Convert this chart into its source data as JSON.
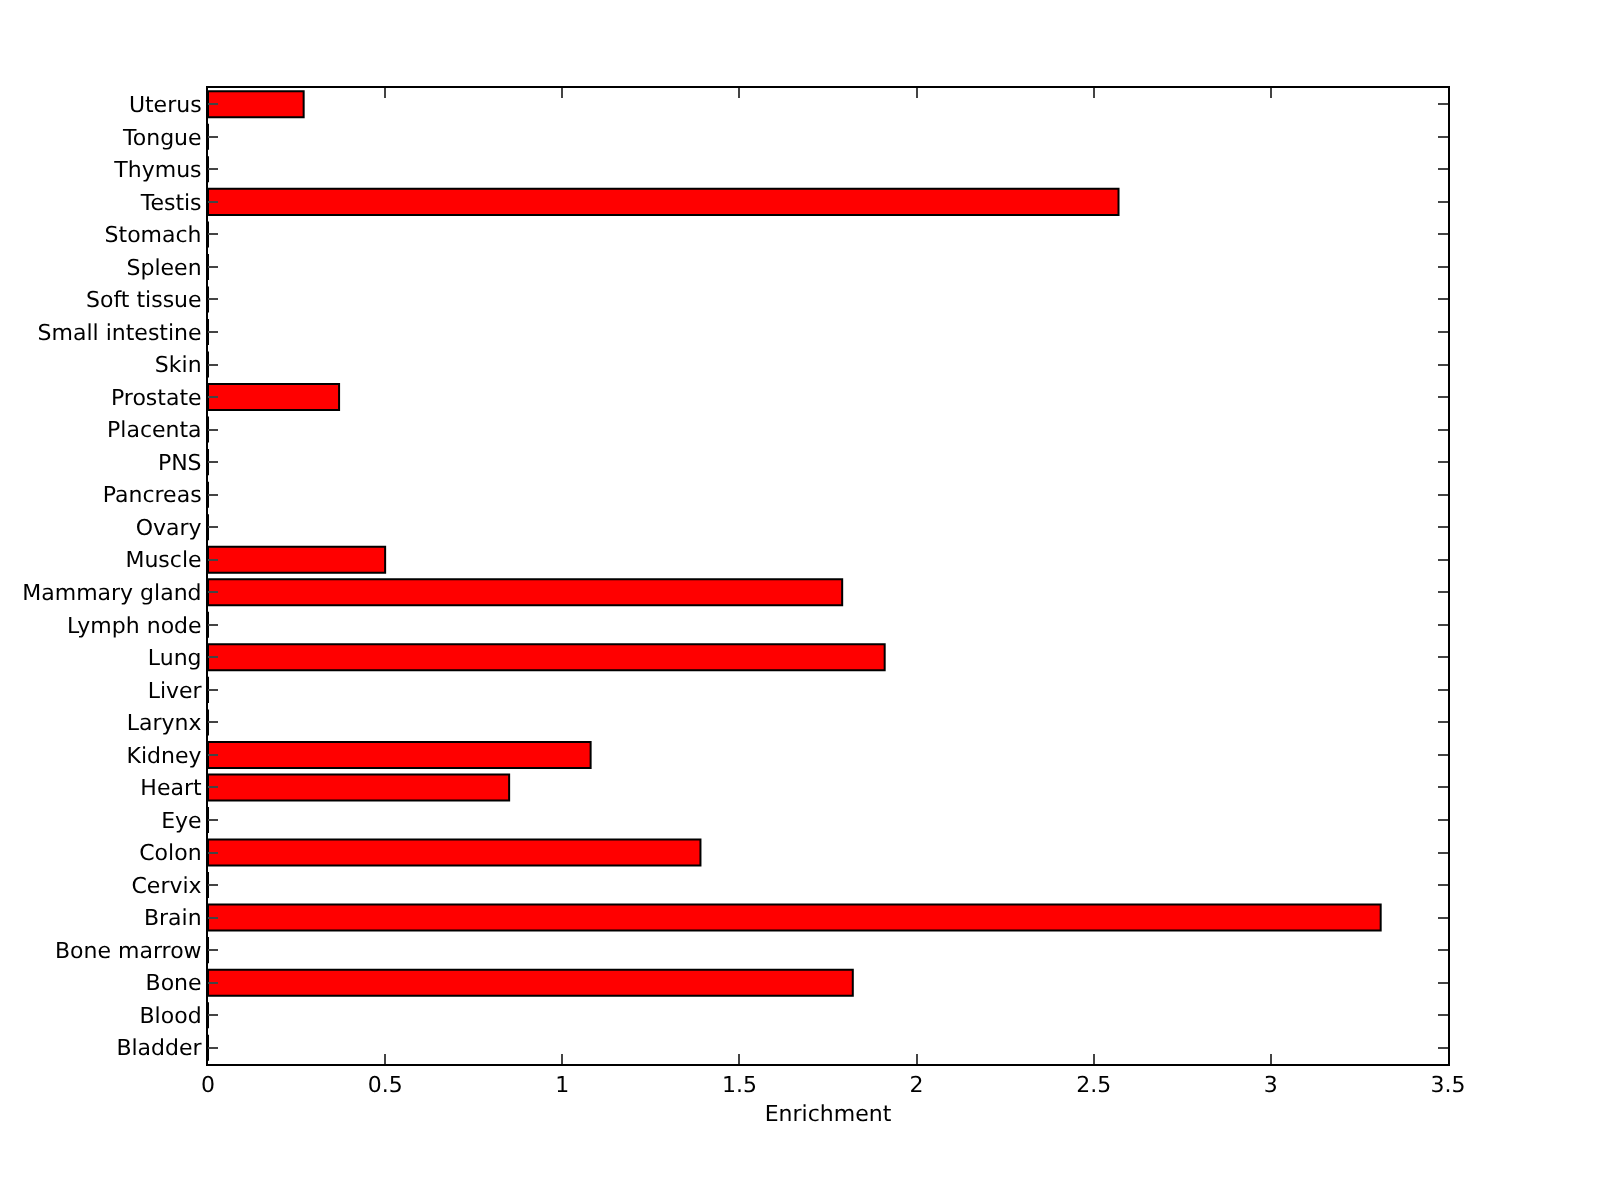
{
  "chart_data": {
    "type": "bar",
    "orientation": "horizontal",
    "xlabel": "Enrichment",
    "categories": [
      "Uterus",
      "Tongue",
      "Thymus",
      "Testis",
      "Stomach",
      "Spleen",
      "Soft tissue",
      "Small intestine",
      "Skin",
      "Prostate",
      "Placenta",
      "PNS",
      "Pancreas",
      "Ovary",
      "Muscle",
      "Mammary gland",
      "Lymph node",
      "Lung",
      "Liver",
      "Larynx",
      "Kidney",
      "Heart",
      "Eye",
      "Colon",
      "Cervix",
      "Brain",
      "Bone marrow",
      "Bone",
      "Blood",
      "Bladder"
    ],
    "values": [
      0.27,
      0,
      0,
      2.57,
      0,
      0,
      0,
      0,
      0,
      0.37,
      0,
      0,
      0,
      0,
      0.5,
      1.79,
      0,
      1.91,
      0,
      0,
      1.08,
      0.85,
      0,
      1.39,
      0,
      3.31,
      0,
      1.82,
      0,
      0
    ],
    "color": "#ff0000",
    "xlim": [
      0,
      3.5
    ],
    "xticks": [
      0,
      0.5,
      1,
      1.5,
      2,
      2.5,
      3,
      3.5
    ]
  }
}
